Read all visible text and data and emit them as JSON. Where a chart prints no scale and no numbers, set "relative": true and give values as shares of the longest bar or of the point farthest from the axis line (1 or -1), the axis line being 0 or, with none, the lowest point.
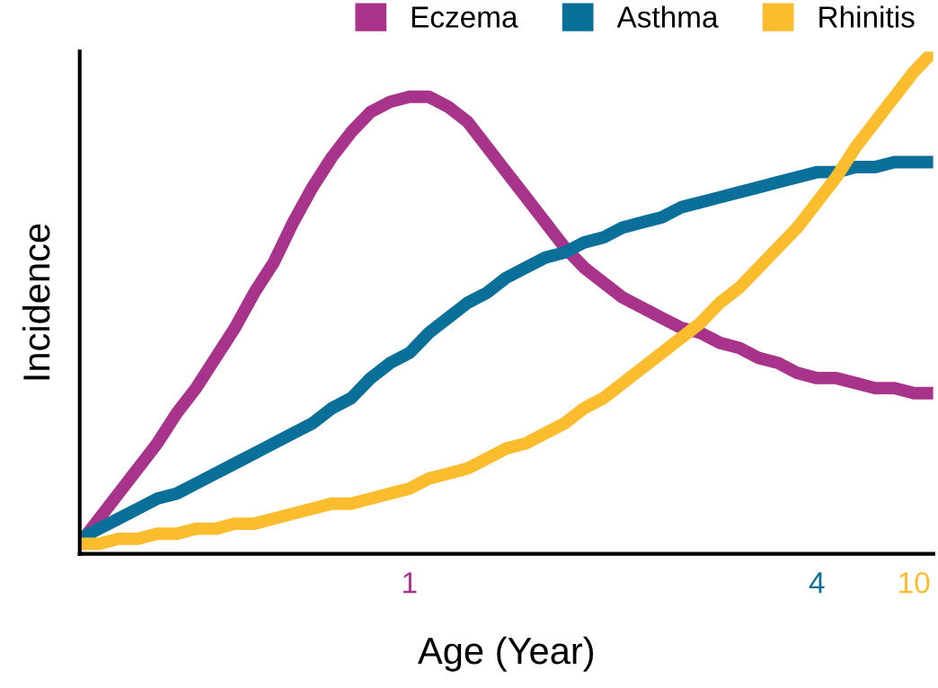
{
  "chart_data": {
    "type": "line",
    "relative": true,
    "xlabel": "Age (Year)",
    "ylabel": "Incidence",
    "legend": "top right",
    "grid": false,
    "marker": "none",
    "line_style": "solid",
    "categories": [
      null,
      null,
      null,
      null,
      null,
      null,
      null,
      null,
      null,
      null,
      null,
      null,
      null,
      null,
      null,
      null,
      null,
      "1",
      null,
      null,
      null,
      null,
      null,
      null,
      null,
      null,
      null,
      null,
      null,
      null,
      null,
      null,
      null,
      null,
      null,
      null,
      null,
      null,
      "4",
      null,
      null,
      null,
      null,
      "10",
      null
    ],
    "series": [
      {
        "name": "Eczema",
        "color": "#a8338a",
        "values": [
          0.02,
          0.07,
          0.12,
          0.17,
          0.22,
          0.28,
          0.33,
          0.39,
          0.45,
          0.52,
          0.58,
          0.66,
          0.73,
          0.79,
          0.84,
          0.88,
          0.9,
          0.91,
          0.91,
          0.89,
          0.86,
          0.81,
          0.76,
          0.71,
          0.66,
          0.61,
          0.57,
          0.54,
          0.51,
          0.49,
          0.47,
          0.45,
          0.44,
          0.42,
          0.41,
          0.39,
          0.38,
          0.36,
          0.35,
          0.35,
          0.34,
          0.33,
          0.33,
          0.32,
          0.32
        ]
      },
      {
        "name": "Asthma",
        "color": "#0a7099",
        "values": [
          0.03,
          0.05,
          0.07,
          0.09,
          0.11,
          0.12,
          0.14,
          0.16,
          0.18,
          0.2,
          0.22,
          0.24,
          0.26,
          0.29,
          0.31,
          0.35,
          0.38,
          0.4,
          0.44,
          0.47,
          0.5,
          0.52,
          0.55,
          0.57,
          0.59,
          0.6,
          0.62,
          0.63,
          0.65,
          0.66,
          0.67,
          0.69,
          0.7,
          0.71,
          0.72,
          0.73,
          0.74,
          0.75,
          0.76,
          0.76,
          0.77,
          0.77,
          0.78,
          0.78,
          0.78
        ]
      },
      {
        "name": "Rhinitis",
        "color": "#fbbd2e",
        "values": [
          0.02,
          0.02,
          0.03,
          0.03,
          0.04,
          0.04,
          0.05,
          0.05,
          0.06,
          0.06,
          0.07,
          0.08,
          0.09,
          0.1,
          0.1,
          0.11,
          0.12,
          0.13,
          0.15,
          0.16,
          0.17,
          0.19,
          0.21,
          0.22,
          0.24,
          0.26,
          0.29,
          0.31,
          0.34,
          0.37,
          0.4,
          0.43,
          0.46,
          0.5,
          0.53,
          0.57,
          0.61,
          0.65,
          0.7,
          0.75,
          0.81,
          0.86,
          0.91,
          0.96,
          1
        ]
      }
    ]
  }
}
